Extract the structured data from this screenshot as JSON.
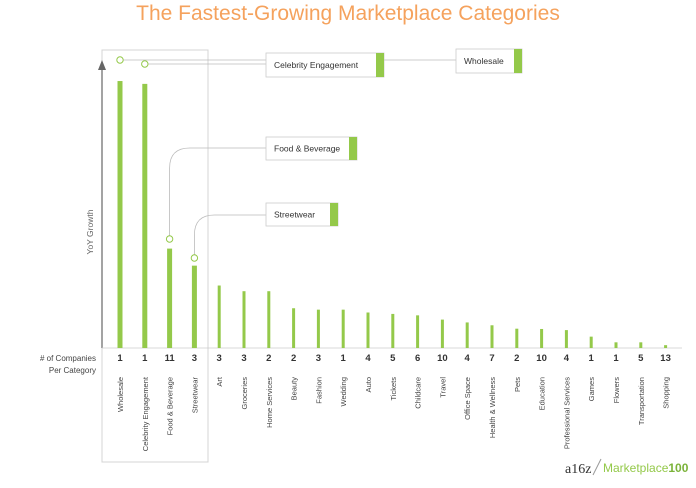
{
  "colors": {
    "title": "#f5a25d",
    "bar": "#94c94a",
    "axis": "#666666",
    "guide": "#bbbbbb"
  },
  "chart_data": {
    "type": "bar",
    "title": "The Fastest-Growing Marketplace Categories",
    "ylabel": "YoY Growth",
    "count_label_line1": "# of Companies",
    "count_label_line2": "Per Category",
    "ylim": [
      0,
      100
    ],
    "y_ticks": "none",
    "grid": false,
    "categories": [
      "Wholesale",
      "Celebrity Engagement",
      "Food & Beverage",
      "Streetwear",
      "Art",
      "Groceries",
      "Home Services",
      "Beauty",
      "Fashion",
      "Wedding",
      "Auto",
      "Tickets",
      "Childcare",
      "Travel",
      "Office Space",
      "Health & Wellness",
      "Pets",
      "Education",
      "Professional Services",
      "Games",
      "Flowers",
      "Transportation",
      "Shopping"
    ],
    "values": [
      94,
      93,
      35,
      29,
      22,
      20,
      20,
      14,
      13.5,
      13.5,
      12.5,
      12,
      11.5,
      10,
      9,
      8,
      6.8,
      6.7,
      6.3,
      4,
      2,
      2,
      1
    ],
    "companies_per_category": [
      1,
      1,
      11,
      3,
      3,
      3,
      2,
      2,
      3,
      1,
      4,
      5,
      6,
      10,
      4,
      7,
      2,
      10,
      4,
      1,
      1,
      5,
      13
    ],
    "highlighted": [
      "Wholesale",
      "Celebrity Engagement",
      "Food & Beverage",
      "Streetwear"
    ],
    "annotations": [
      "Wholesale",
      "Celebrity Engagement",
      "Food & Beverage",
      "Streetwear"
    ]
  },
  "branding": {
    "logo_a16z": "a16z",
    "logo_marketplace": "Marketplace",
    "logo_number": "100"
  }
}
